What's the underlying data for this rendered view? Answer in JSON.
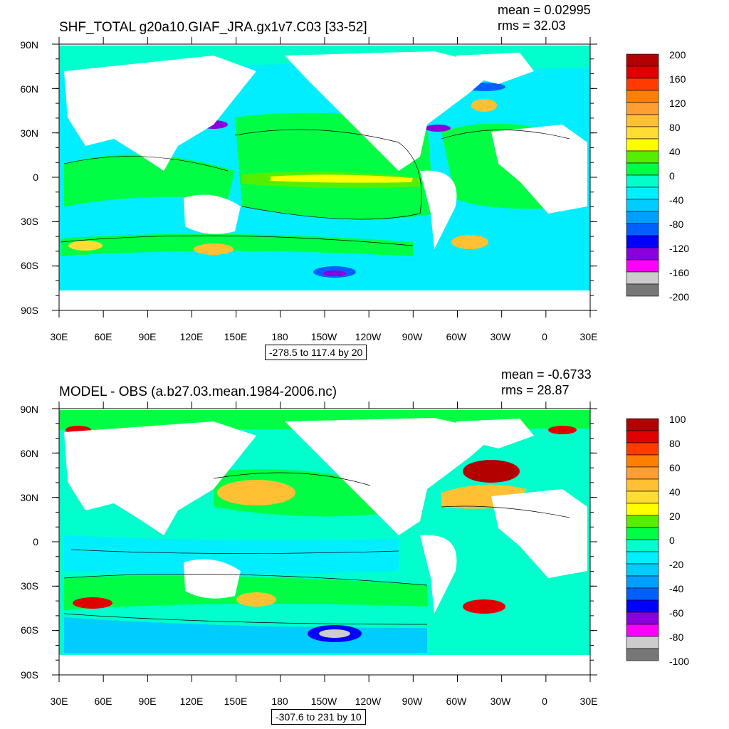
{
  "panels": [
    {
      "title": "SHF_TOTAL g20a10.GIAF_JRA.gx1v7.C03 [33-52]",
      "mean_label": "mean = 0.02995",
      "rms_label": "rms = 32.03",
      "contour_caption": "-278.5 to 117.4 by 20",
      "lat_labels": [
        "90N",
        "60N",
        "30N",
        "0",
        "30S",
        "60S",
        "90S"
      ],
      "lon_labels": [
        "30E",
        "60E",
        "90E",
        "120E",
        "150E",
        "180",
        "150W",
        "120W",
        "90W",
        "60W",
        "30W",
        "0",
        "30E"
      ],
      "colorbar_labels": [
        "200",
        "160",
        "120",
        "80",
        "40",
        "0",
        "-40",
        "-80",
        "-120",
        "-160",
        "-200"
      ],
      "colorbar_colors": [
        "#b30000",
        "#e00000",
        "#ff3b00",
        "#ff7f00",
        "#ff9f33",
        "#ffc033",
        "#ffdd33",
        "#ffff00",
        "#55ee00",
        "#00ff44",
        "#00ffcc",
        "#00eeff",
        "#00ccff",
        "#009fff",
        "#0060ff",
        "#0000ff",
        "#8a00dd",
        "#ff00ff",
        "#cccccc",
        "#777777"
      ],
      "ocean_color": "#00ff44"
    },
    {
      "title": "MODEL - OBS (a.b27.03.mean.1984-2006.nc)",
      "mean_label": "mean = -0.6733",
      "rms_label": "rms = 28.87",
      "contour_caption": "-307.6 to 231 by 10",
      "lat_labels": [
        "90N",
        "60N",
        "30N",
        "0",
        "30S",
        "60S",
        "90S"
      ],
      "lon_labels": [
        "30E",
        "60E",
        "90E",
        "120E",
        "150E",
        "180",
        "150W",
        "120W",
        "90W",
        "60W",
        "30W",
        "0",
        "30E"
      ],
      "colorbar_labels": [
        "100",
        "80",
        "60",
        "40",
        "20",
        "0",
        "-20",
        "-40",
        "-60",
        "-80",
        "-100"
      ],
      "colorbar_colors": [
        "#b30000",
        "#e00000",
        "#ff3b00",
        "#ff7f00",
        "#ff9f33",
        "#ffc033",
        "#ffdd33",
        "#ffff00",
        "#55ee00",
        "#00ff44",
        "#00ffcc",
        "#00eeff",
        "#00ccff",
        "#009fff",
        "#0060ff",
        "#0000ff",
        "#8a00dd",
        "#ff00ff",
        "#cccccc",
        "#777777"
      ],
      "ocean_color": "#00ffcc"
    }
  ]
}
